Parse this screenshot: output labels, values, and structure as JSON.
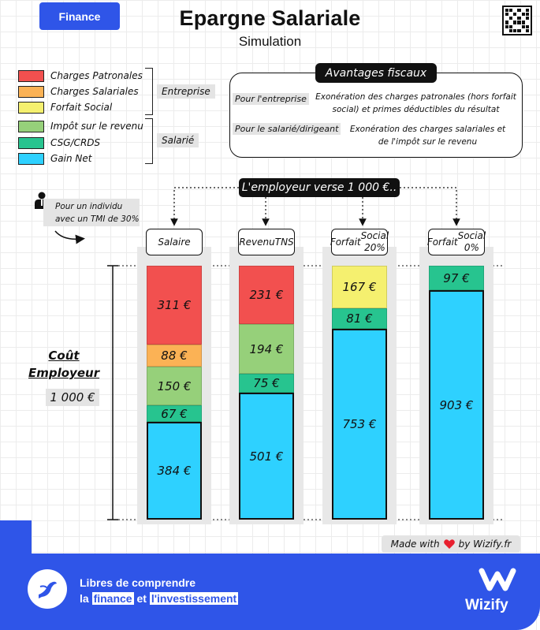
{
  "header": {
    "tag": "Finance",
    "title": "Epargne Salariale",
    "subtitle": "Simulation"
  },
  "legend": {
    "items": [
      {
        "label": "Charges Patronales",
        "color": "#f2504f"
      },
      {
        "label": "Charges Salariales",
        "color": "#fbb255"
      },
      {
        "label": "Forfait Social",
        "color": "#f5f06f"
      },
      {
        "label": "Impôt sur le revenu",
        "color": "#96d07a"
      },
      {
        "label": "CSG/CRDS",
        "color": "#27c48f"
      },
      {
        "label": "Gain Net",
        "color": "#2ed1ff"
      }
    ],
    "groups": {
      "entreprise": "Entreprise",
      "salarie": "Salarié"
    }
  },
  "fiscal": {
    "title": "Avantages fiscaux",
    "rows": [
      {
        "label": "Pour l'entreprise",
        "text": "Exonération des charges patronales (hors forfait social) et primes déductibles du résultat"
      },
      {
        "label": "Pour le salarié/dirigeant",
        "text": "Exonération des charges salariales et de l'impôt sur le revenu"
      }
    ]
  },
  "employer_label": "L'employeur verse 1 000 €..",
  "individu_label": "Pour un individu avec un TMI de 30%",
  "cost": {
    "label_line1": "Coût",
    "label_line2": "Employeur",
    "total": "1 000 €"
  },
  "chart_data": {
    "type": "bar",
    "stacked": true,
    "total": 1000,
    "unit": "€",
    "categories": [
      "Salaire",
      "Revenu TNS",
      "Forfait Social 20%",
      "Forfait Social 0%"
    ],
    "columns": [
      {
        "header": [
          "Salaire"
        ],
        "segments": [
          {
            "name": "Charges Patronales",
            "value": 311,
            "label": "311 €"
          },
          {
            "name": "Charges Salariales",
            "value": 88,
            "label": "88 €"
          },
          {
            "name": "Impôt sur le revenu",
            "value": 150,
            "label": "150 €"
          },
          {
            "name": "CSG/CRDS",
            "value": 67,
            "label": "67 €"
          },
          {
            "name": "Gain Net",
            "value": 384,
            "label": "384 €"
          }
        ]
      },
      {
        "header": [
          "Revenu",
          "TNS"
        ],
        "segments": [
          {
            "name": "Charges Patronales",
            "value": 231,
            "label": "231 €"
          },
          {
            "name": "Impôt sur le revenu",
            "value": 194,
            "label": "194 €"
          },
          {
            "name": "CSG/CRDS",
            "value": 75,
            "label": "75 €"
          },
          {
            "name": "Gain Net",
            "value": 501,
            "label": "501 €"
          }
        ]
      },
      {
        "header": [
          "Forfait",
          "Social 20%"
        ],
        "segments": [
          {
            "name": "Forfait Social",
            "value": 167,
            "label": "167 €"
          },
          {
            "name": "CSG/CRDS",
            "value": 81,
            "label": "81 €"
          },
          {
            "name": "Gain Net",
            "value": 753,
            "label": "753 €"
          }
        ]
      },
      {
        "header": [
          "Forfait",
          "Social 0%"
        ],
        "segments": [
          {
            "name": "CSG/CRDS",
            "value": 97,
            "label": "97 €"
          },
          {
            "name": "Gain Net",
            "value": 903,
            "label": "903 €"
          }
        ]
      }
    ]
  },
  "footer": {
    "made_with": "Made with",
    "by": "by Wizify.fr",
    "slogan_line1": "Libres de comprendre",
    "slogan_la": "la",
    "slogan_finance": "finance",
    "slogan_et": "et",
    "slogan_invest": "l'investissement",
    "brand": "Wizify"
  }
}
